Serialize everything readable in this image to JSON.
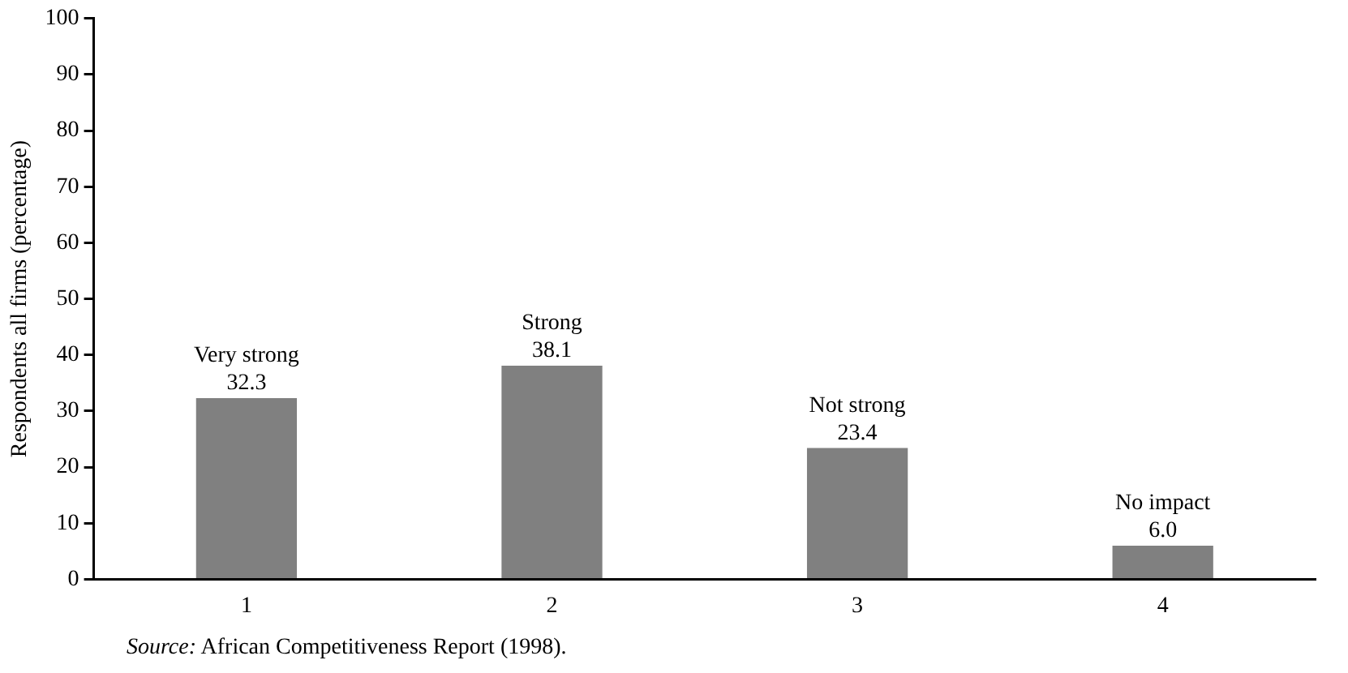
{
  "chart_data": {
    "type": "bar",
    "ylabel": "Respondents all firms (percentage)",
    "categories": [
      "1",
      "2",
      "3",
      "4"
    ],
    "values": [
      32.3,
      38.1,
      23.4,
      6.0
    ],
    "value_labels": [
      "32.3",
      "38.1",
      "23.4",
      "6.0"
    ],
    "color": "#808080",
    "ylim": [
      0,
      100
    ],
    "yticks": [
      0,
      10,
      20,
      30,
      40,
      50,
      60,
      70,
      80,
      90,
      100
    ],
    "grid": false,
    "legend": false,
    "annotations": [
      {
        "text": "Very strong",
        "x": "1",
        "y": 32.3
      },
      {
        "text": "Strong",
        "x": "2",
        "y": 38.1
      },
      {
        "text": "Not strong",
        "x": "3",
        "y": 23.4
      },
      {
        "text": "No impact",
        "x": "4",
        "y": 6.0
      },
      "Source: African Competitiveness Report (1998)."
    ]
  }
}
